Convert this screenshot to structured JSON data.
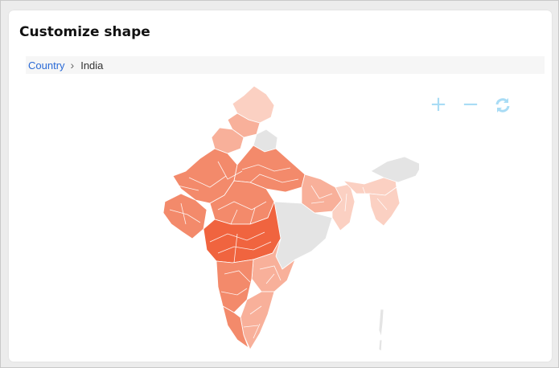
{
  "page": {
    "title": "Customize shape"
  },
  "breadcrumb": {
    "items": [
      "Country",
      "India"
    ],
    "separator": ">"
  },
  "map": {
    "region": "India",
    "colors": {
      "dark": "#f0643f",
      "medium": "#f38a6b",
      "light": "#f8b09a",
      "pale": "#fbd0c2",
      "nodata": "#e4e4e4",
      "border": "#ffffff"
    }
  },
  "controls": {
    "zoom_in_icon": "plus-icon",
    "zoom_out_icon": "minus-icon",
    "reset_icon": "refresh-icon",
    "color": "#a9dcf5"
  }
}
